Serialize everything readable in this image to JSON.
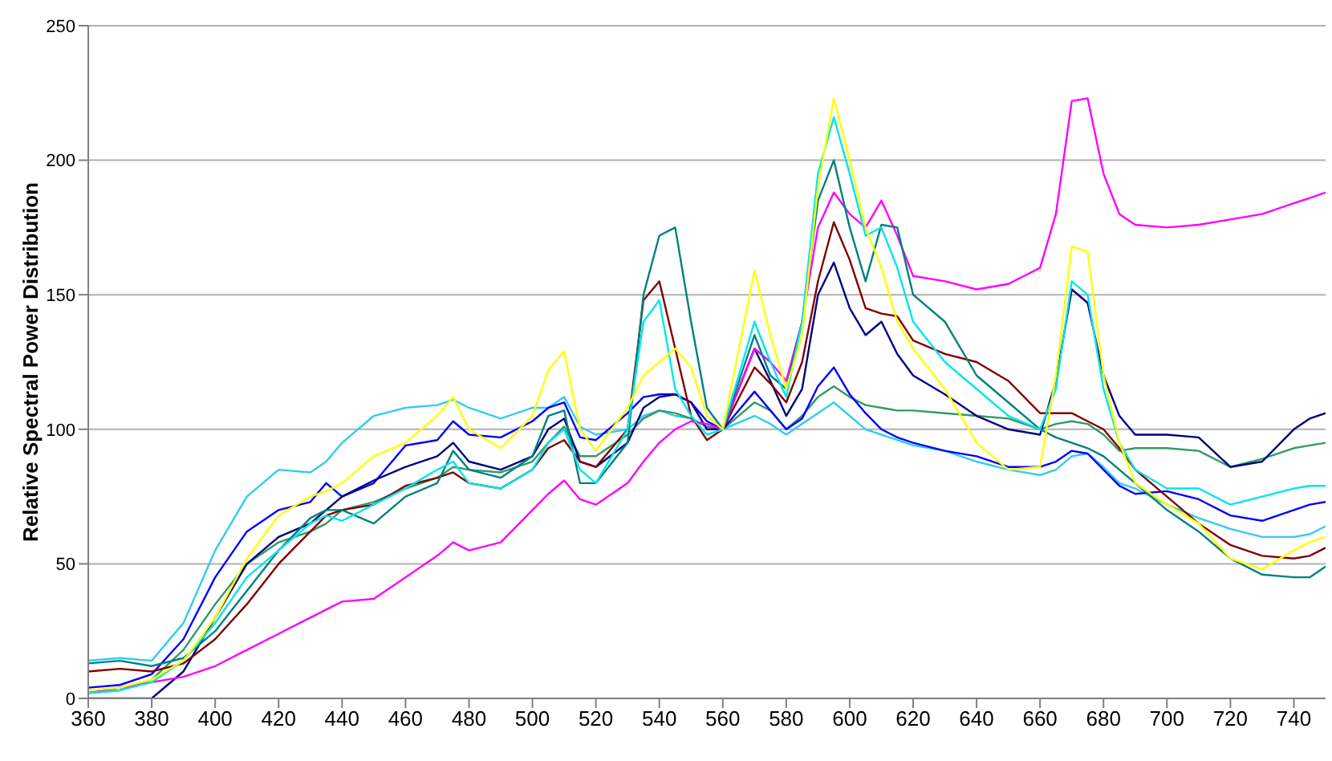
{
  "chart_data": {
    "type": "line",
    "ylabel": "Relative Spectral Power Distribution",
    "x": [
      360,
      370,
      380,
      390,
      400,
      410,
      420,
      430,
      435,
      440,
      450,
      460,
      470,
      475,
      480,
      490,
      500,
      505,
      510,
      515,
      520,
      530,
      535,
      540,
      545,
      550,
      555,
      560,
      570,
      575,
      580,
      585,
      590,
      595,
      600,
      605,
      610,
      615,
      620,
      630,
      640,
      650,
      660,
      665,
      670,
      675,
      680,
      685,
      690,
      700,
      710,
      720,
      730,
      740,
      745,
      750
    ],
    "xlim": [
      360,
      750
    ],
    "xticks": [
      360,
      380,
      400,
      420,
      440,
      460,
      480,
      500,
      520,
      540,
      560,
      580,
      600,
      620,
      640,
      660,
      680,
      700,
      720,
      740
    ],
    "ylim": [
      0,
      250
    ],
    "yticks": [
      0,
      50,
      100,
      150,
      200,
      250
    ],
    "grid": "y",
    "marker": "none",
    "line_style": "solid",
    "series": [
      {
        "color": "#33ccee",
        "values": [
          14,
          15,
          14,
          28,
          55,
          75,
          85,
          84,
          88,
          95,
          105,
          108,
          109,
          111,
          108,
          104,
          108,
          108,
          112,
          101,
          98,
          100,
          105,
          107,
          105,
          104,
          101,
          100,
          105,
          102,
          98,
          102,
          106,
          110,
          105,
          100,
          98,
          96,
          94,
          92,
          88,
          85,
          83,
          85,
          90,
          91,
          86,
          80,
          78,
          72,
          67,
          63,
          60,
          60,
          61,
          64
        ]
      },
      {
        "color": "#339966",
        "values": [
          2,
          3,
          7,
          18,
          35,
          50,
          58,
          62,
          65,
          70,
          73,
          78,
          82,
          86,
          85,
          84,
          88,
          95,
          101,
          90,
          90,
          98,
          104,
          107,
          106,
          104,
          101,
          100,
          110,
          107,
          100,
          105,
          112,
          116,
          112,
          109,
          108,
          107,
          107,
          106,
          105,
          104,
          100,
          102,
          103,
          102,
          98,
          92,
          93,
          93,
          92,
          86,
          89,
          93,
          94,
          95
        ]
      },
      {
        "color": "#0000ff",
        "values": [
          4,
          5,
          9,
          22,
          45,
          62,
          70,
          73,
          80,
          75,
          80,
          94,
          96,
          103,
          98,
          97,
          103,
          108,
          110,
          97,
          96,
          106,
          112,
          113,
          113,
          110,
          103,
          100,
          114,
          107,
          100,
          104,
          116,
          123,
          113,
          106,
          100,
          97,
          95,
          92,
          90,
          86,
          86,
          88,
          92,
          91,
          85,
          79,
          76,
          77,
          74,
          68,
          66,
          70,
          72,
          73
        ]
      },
      {
        "color": "#000080",
        "values": [
          0,
          0,
          0,
          10,
          30,
          50,
          60,
          65,
          70,
          75,
          81,
          86,
          90,
          95,
          88,
          85,
          90,
          100,
          104,
          88,
          86,
          95,
          108,
          112,
          113,
          110,
          100,
          100,
          130,
          118,
          105,
          115,
          150,
          162,
          145,
          135,
          140,
          128,
          120,
          113,
          105,
          100,
          98,
          118,
          152,
          147,
          120,
          105,
          98,
          98,
          97,
          86,
          88,
          100,
          104,
          106
        ]
      },
      {
        "color": "#800000",
        "values": [
          10,
          11,
          10,
          13,
          22,
          35,
          50,
          62,
          68,
          70,
          72,
          79,
          82,
          84,
          80,
          78,
          85,
          93,
          96,
          88,
          86,
          100,
          148,
          155,
          130,
          105,
          96,
          100,
          123,
          117,
          110,
          125,
          155,
          177,
          163,
          145,
          143,
          142,
          133,
          128,
          125,
          118,
          106,
          106,
          106,
          103,
          100,
          93,
          85,
          75,
          65,
          57,
          53,
          52,
          53,
          56
        ]
      },
      {
        "color": "#ff00ff",
        "values": [
          2,
          4,
          6,
          8,
          12,
          18,
          24,
          30,
          33,
          36,
          37,
          45,
          53,
          58,
          55,
          58,
          70,
          76,
          81,
          74,
          72,
          80,
          88,
          95,
          100,
          103,
          102,
          100,
          130,
          125,
          118,
          140,
          175,
          188,
          180,
          175,
          185,
          172,
          157,
          155,
          152,
          154,
          160,
          180,
          222,
          223,
          195,
          180,
          176,
          175,
          176,
          178,
          180,
          184,
          186,
          188
        ]
      },
      {
        "color": "#008080",
        "values": [
          13,
          14,
          12,
          15,
          25,
          40,
          55,
          67,
          70,
          70,
          65,
          75,
          80,
          92,
          85,
          82,
          90,
          105,
          107,
          80,
          80,
          95,
          150,
          172,
          175,
          140,
          108,
          100,
          135,
          120,
          115,
          140,
          185,
          200,
          175,
          155,
          176,
          175,
          150,
          140,
          120,
          110,
          100,
          97,
          95,
          93,
          90,
          85,
          80,
          70,
          62,
          52,
          46,
          45,
          45,
          49
        ]
      },
      {
        "color": "#00e5ee",
        "values": [
          2,
          3,
          6,
          14,
          28,
          45,
          55,
          65,
          68,
          66,
          72,
          78,
          85,
          88,
          80,
          78,
          85,
          95,
          100,
          85,
          80,
          100,
          140,
          148,
          115,
          105,
          98,
          100,
          140,
          125,
          112,
          140,
          195,
          216,
          195,
          172,
          175,
          160,
          140,
          125,
          115,
          105,
          100,
          115,
          155,
          150,
          115,
          95,
          85,
          78,
          78,
          72,
          75,
          78,
          79,
          79
        ]
      },
      {
        "color": "#ffff00",
        "values": [
          3,
          4,
          7,
          14,
          30,
          52,
          68,
          75,
          77,
          80,
          90,
          95,
          105,
          112,
          100,
          93,
          105,
          122,
          129,
          100,
          92,
          108,
          120,
          125,
          130,
          123,
          105,
          100,
          159,
          135,
          115,
          135,
          190,
          223,
          200,
          175,
          160,
          140,
          130,
          115,
          95,
          85,
          86,
          120,
          168,
          166,
          120,
          95,
          80,
          72,
          65,
          52,
          48,
          55,
          58,
          60
        ]
      }
    ]
  }
}
